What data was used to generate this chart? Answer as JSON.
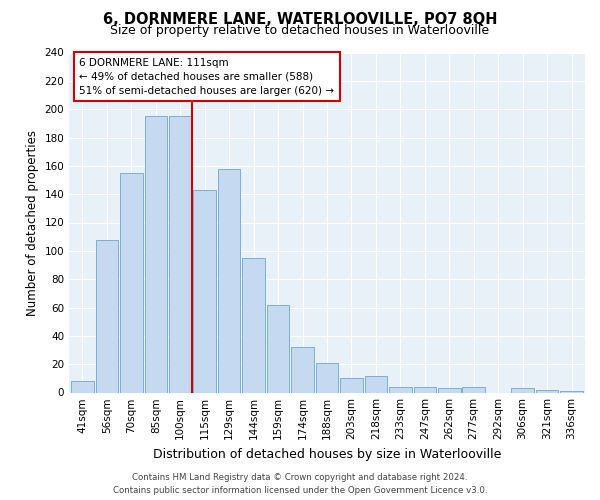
{
  "title": "6, DORNMERE LANE, WATERLOOVILLE, PO7 8QH",
  "subtitle": "Size of property relative to detached houses in Waterlooville",
  "xlabel": "Distribution of detached houses by size in Waterlooville",
  "ylabel": "Number of detached properties",
  "categories": [
    "41sqm",
    "56sqm",
    "70sqm",
    "85sqm",
    "100sqm",
    "115sqm",
    "129sqm",
    "144sqm",
    "159sqm",
    "174sqm",
    "188sqm",
    "203sqm",
    "218sqm",
    "233sqm",
    "247sqm",
    "262sqm",
    "277sqm",
    "292sqm",
    "306sqm",
    "321sqm",
    "336sqm"
  ],
  "bar_heights": [
    8,
    108,
    155,
    195,
    195,
    143,
    158,
    95,
    62,
    32,
    21,
    10,
    12,
    4,
    4,
    3,
    4,
    0,
    3,
    2,
    1
  ],
  "bar_color": "#c5d9f0",
  "bar_edge_color": "#7aafd4",
  "red_line_x": 4.5,
  "annotation_title": "6 DORNMERE LANE: 111sqm",
  "annotation_line1": "← 49% of detached houses are smaller (588)",
  "annotation_line2": "51% of semi-detached houses are larger (620) →",
  "annotation_box_color": "#ffffff",
  "annotation_box_edge": "#cc0000",
  "red_line_color": "#cc0000",
  "ylim": [
    0,
    240
  ],
  "yticks": [
    0,
    20,
    40,
    60,
    80,
    100,
    120,
    140,
    160,
    180,
    200,
    220,
    240
  ],
  "background_color": "#e8f0f8",
  "footer_line1": "Contains HM Land Registry data © Crown copyright and database right 2024.",
  "footer_line2": "Contains public sector information licensed under the Open Government Licence v3.0.",
  "title_fontsize": 10.5,
  "subtitle_fontsize": 9,
  "xlabel_fontsize": 9,
  "ylabel_fontsize": 8.5,
  "tick_fontsize": 7.5,
  "annotation_fontsize": 7.5,
  "footer_fontsize": 6.2
}
